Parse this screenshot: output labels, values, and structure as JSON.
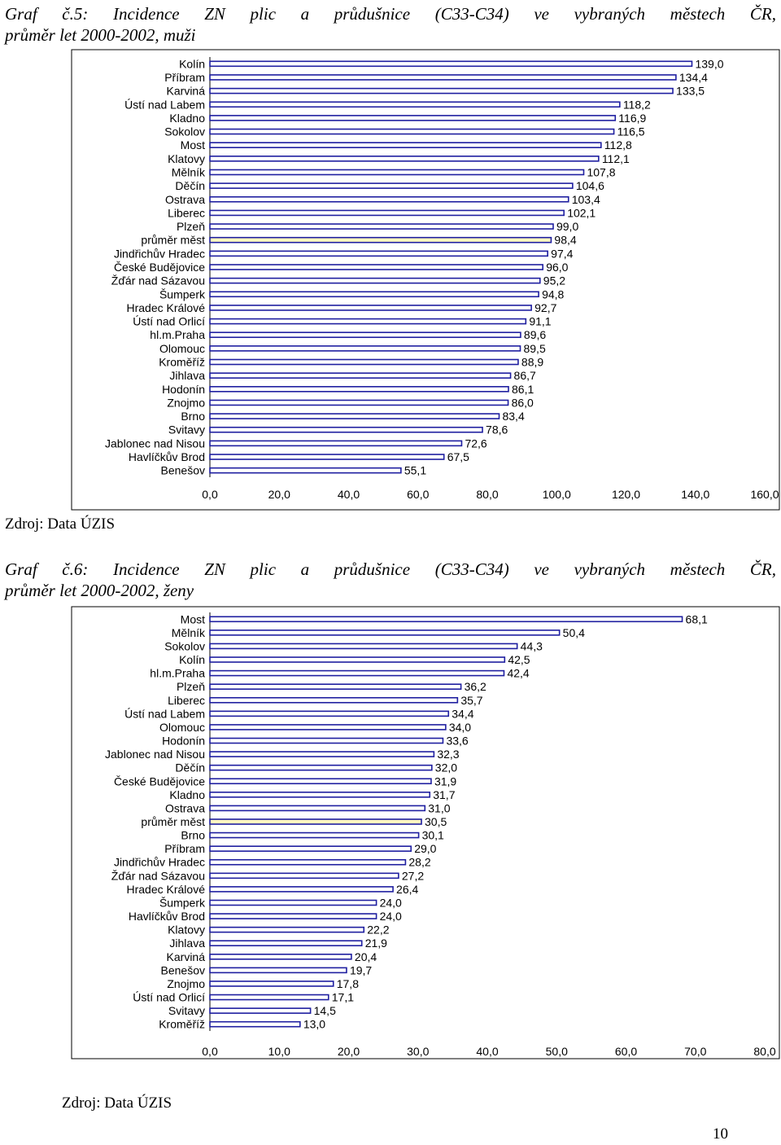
{
  "charts": [
    {
      "caption": {
        "line1": "Graf č.5: Incidence ZN plic a průdušnice (C33-C34) ve vybraných městech ČR,",
        "line2": "průměr let 2000-2002, muži"
      },
      "source": "Zdroj: Data ÚZIS",
      "chart_data": {
        "type": "bar",
        "orientation": "horizontal",
        "categories": [
          "Kolín",
          "Příbram",
          "Karviná",
          "Ústí nad Labem",
          "Kladno",
          "Sokolov",
          "Most",
          "Klatovy",
          "Mělník",
          "Děčín",
          "Ostrava",
          "Liberec",
          "Plzeň",
          "průměr měst",
          "Jindřichův Hradec",
          "České Budějovice",
          "Žďár nad Sázavou",
          "Šumperk",
          "Hradec Králové",
          "Ústí nad Orlicí",
          "hl.m.Praha",
          "Olomouc",
          "Kroměříž",
          "Jihlava",
          "Hodonín",
          "Znojmo",
          "Brno",
          "Svitavy",
          "Jablonec nad Nisou",
          "Havlíčkův Brod",
          "Benešov"
        ],
        "values": [
          139.0,
          134.4,
          133.5,
          118.2,
          116.9,
          116.5,
          112.8,
          112.1,
          107.8,
          104.6,
          103.4,
          102.1,
          99.0,
          98.4,
          97.4,
          96.0,
          95.2,
          94.8,
          92.7,
          91.1,
          89.6,
          89.5,
          88.9,
          86.7,
          86.1,
          86.0,
          83.4,
          78.6,
          72.6,
          67.5,
          55.1
        ],
        "value_labels": [
          "139,0",
          "134,4",
          "133,5",
          "118,2",
          "116,9",
          "116,5",
          "112,8",
          "112,1",
          "107,8",
          "104,6",
          "103,4",
          "102,1",
          "99,0",
          "98,4",
          "97,4",
          "96,0",
          "95,2",
          "94,8",
          "92,7",
          "91,1",
          "89,6",
          "89,5",
          "88,9",
          "86,7",
          "86,1",
          "86,0",
          "83,4",
          "78,6",
          "72,6",
          "67,5",
          "55,1"
        ],
        "highlight_category": "průměr měst",
        "xlim": [
          0,
          160
        ],
        "xticks": [
          0,
          20,
          40,
          60,
          80,
          100,
          120,
          140,
          160
        ],
        "xtick_labels": [
          "0,0",
          "20,0",
          "40,0",
          "60,0",
          "80,0",
          "100,0",
          "120,0",
          "140,0",
          "160,0"
        ],
        "bar_color": "#1f1fa0",
        "highlight_color": "#fff8c0",
        "bar_fill": "#ffffff",
        "grid": false,
        "title": "",
        "xlabel": "",
        "ylabel": ""
      }
    },
    {
      "caption": {
        "line1": "Graf č.6: Incidence ZN plic a průdušnice (C33-C34) ve vybraných městech ČR,",
        "line2": "průměr let 2000-2002, ženy"
      },
      "source": "Zdroj: Data ÚZIS",
      "chart_data": {
        "type": "bar",
        "orientation": "horizontal",
        "categories": [
          "Most",
          "Mělník",
          "Sokolov",
          "Kolín",
          "hl.m.Praha",
          "Plzeň",
          "Liberec",
          "Ústí nad Labem",
          "Olomouc",
          "Hodonín",
          "Jablonec nad Nisou",
          "Děčín",
          "České Budějovice",
          "Kladno",
          "Ostrava",
          "průměr měst",
          "Brno",
          "Příbram",
          "Jindřichův Hradec",
          "Žďár nad Sázavou",
          "Hradec Králové",
          "Šumperk",
          "Havlíčkův Brod",
          "Klatovy",
          "Jihlava",
          "Karviná",
          "Benešov",
          "Znojmo",
          "Ústí nad Orlicí",
          "Svitavy",
          "Kroměříž"
        ],
        "values": [
          68.1,
          50.4,
          44.3,
          42.5,
          42.4,
          36.2,
          35.7,
          34.4,
          34.0,
          33.6,
          32.3,
          32.0,
          31.9,
          31.7,
          31.0,
          30.5,
          30.1,
          29.0,
          28.2,
          27.2,
          26.4,
          24.0,
          24.0,
          22.2,
          21.9,
          20.4,
          19.7,
          17.8,
          17.1,
          14.5,
          13.0
        ],
        "value_labels": [
          "68,1",
          "50,4",
          "44,3",
          "42,5",
          "42,4",
          "36,2",
          "35,7",
          "34,4",
          "34,0",
          "33,6",
          "32,3",
          "32,0",
          "31,9",
          "31,7",
          "31,0",
          "30,5",
          "30,1",
          "29,0",
          "28,2",
          "27,2",
          "26,4",
          "24,0",
          "24,0",
          "22,2",
          "21,9",
          "20,4",
          "19,7",
          "17,8",
          "17,1",
          "14,5",
          "13,0"
        ],
        "highlight_category": "průměr měst",
        "xlim": [
          0,
          80
        ],
        "xticks": [
          0,
          10,
          20,
          30,
          40,
          50,
          60,
          70,
          80
        ],
        "xtick_labels": [
          "0,0",
          "10,0",
          "20,0",
          "30,0",
          "40,0",
          "50,0",
          "60,0",
          "70,0",
          "80,0"
        ],
        "bar_color": "#1f1fa0",
        "highlight_color": "#fff8c0",
        "bar_fill": "#ffffff",
        "grid": false,
        "title": "",
        "xlabel": "",
        "ylabel": ""
      }
    }
  ],
  "page_number": "10"
}
